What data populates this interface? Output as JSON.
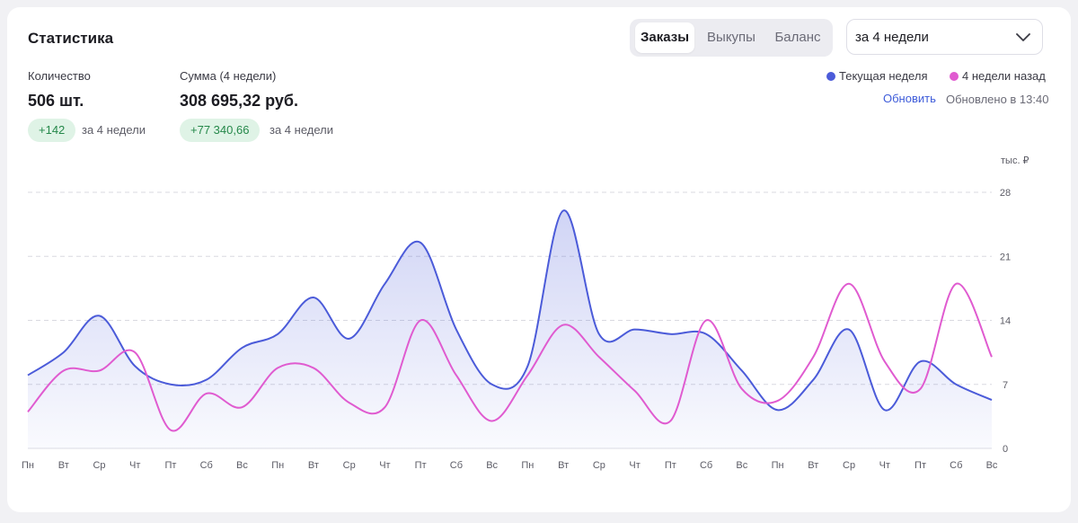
{
  "header": {
    "title": "Статистика"
  },
  "tabs": [
    {
      "label": "Заказы",
      "active": true
    },
    {
      "label": "Выкупы",
      "active": false
    },
    {
      "label": "Баланс",
      "active": false
    }
  ],
  "period_select": {
    "value": "за 4 недели"
  },
  "stats": {
    "count": {
      "label": "Количество",
      "value": "506 шт.",
      "delta": "+142",
      "delta_note": "за 4 недели"
    },
    "sum": {
      "label": "Сумма (4 недели)",
      "value": "308 695,32 руб.",
      "delta": "+77 340,66",
      "delta_note": "за 4 недели"
    }
  },
  "legend": {
    "current": {
      "label": "Текущая неделя",
      "color": "#4b5bd9"
    },
    "previous": {
      "label": "4 недели назад",
      "color": "#e05bd0"
    }
  },
  "refresh": {
    "label": "Обновить",
    "updated": "Обновлено в 13:40"
  },
  "chart_data": {
    "type": "area",
    "unit_label": "тыс. ₽",
    "ylim": [
      0,
      28
    ],
    "yticks": [
      0,
      7,
      14,
      21,
      28
    ],
    "categories": [
      "Пн",
      "Вт",
      "Ср",
      "Чт",
      "Пт",
      "Сб",
      "Вс",
      "Пн",
      "Вт",
      "Ср",
      "Чт",
      "Пт",
      "Сб",
      "Вс",
      "Пн",
      "Вт",
      "Ср",
      "Чт",
      "Пт",
      "Сб",
      "Вс",
      "Пн",
      "Вт",
      "Ср",
      "Чт",
      "Пт",
      "Сб",
      "Вс"
    ],
    "series": [
      {
        "name": "Текущая неделя",
        "color": "#4b5bd9",
        "filled": true,
        "values": [
          8.0,
          10.5,
          14.5,
          9.0,
          7.0,
          7.5,
          11.0,
          12.5,
          16.5,
          12.0,
          18.0,
          22.5,
          13.0,
          7.0,
          9.0,
          26.0,
          12.5,
          13.0,
          12.5,
          12.5,
          8.5,
          4.2,
          7.5,
          13.0,
          4.2,
          9.5,
          7.0,
          5.3
        ]
      },
      {
        "name": "4 недели назад",
        "color": "#e05bd0",
        "filled": false,
        "values": [
          4.0,
          8.5,
          8.5,
          10.5,
          2.0,
          6.0,
          4.5,
          8.8,
          8.8,
          5.0,
          4.5,
          14.0,
          8.0,
          3.0,
          8.0,
          13.5,
          10.0,
          6.3,
          3.0,
          14.0,
          6.5,
          5.2,
          10.0,
          18.0,
          9.5,
          6.5,
          18.0,
          10.0
        ]
      }
    ]
  }
}
